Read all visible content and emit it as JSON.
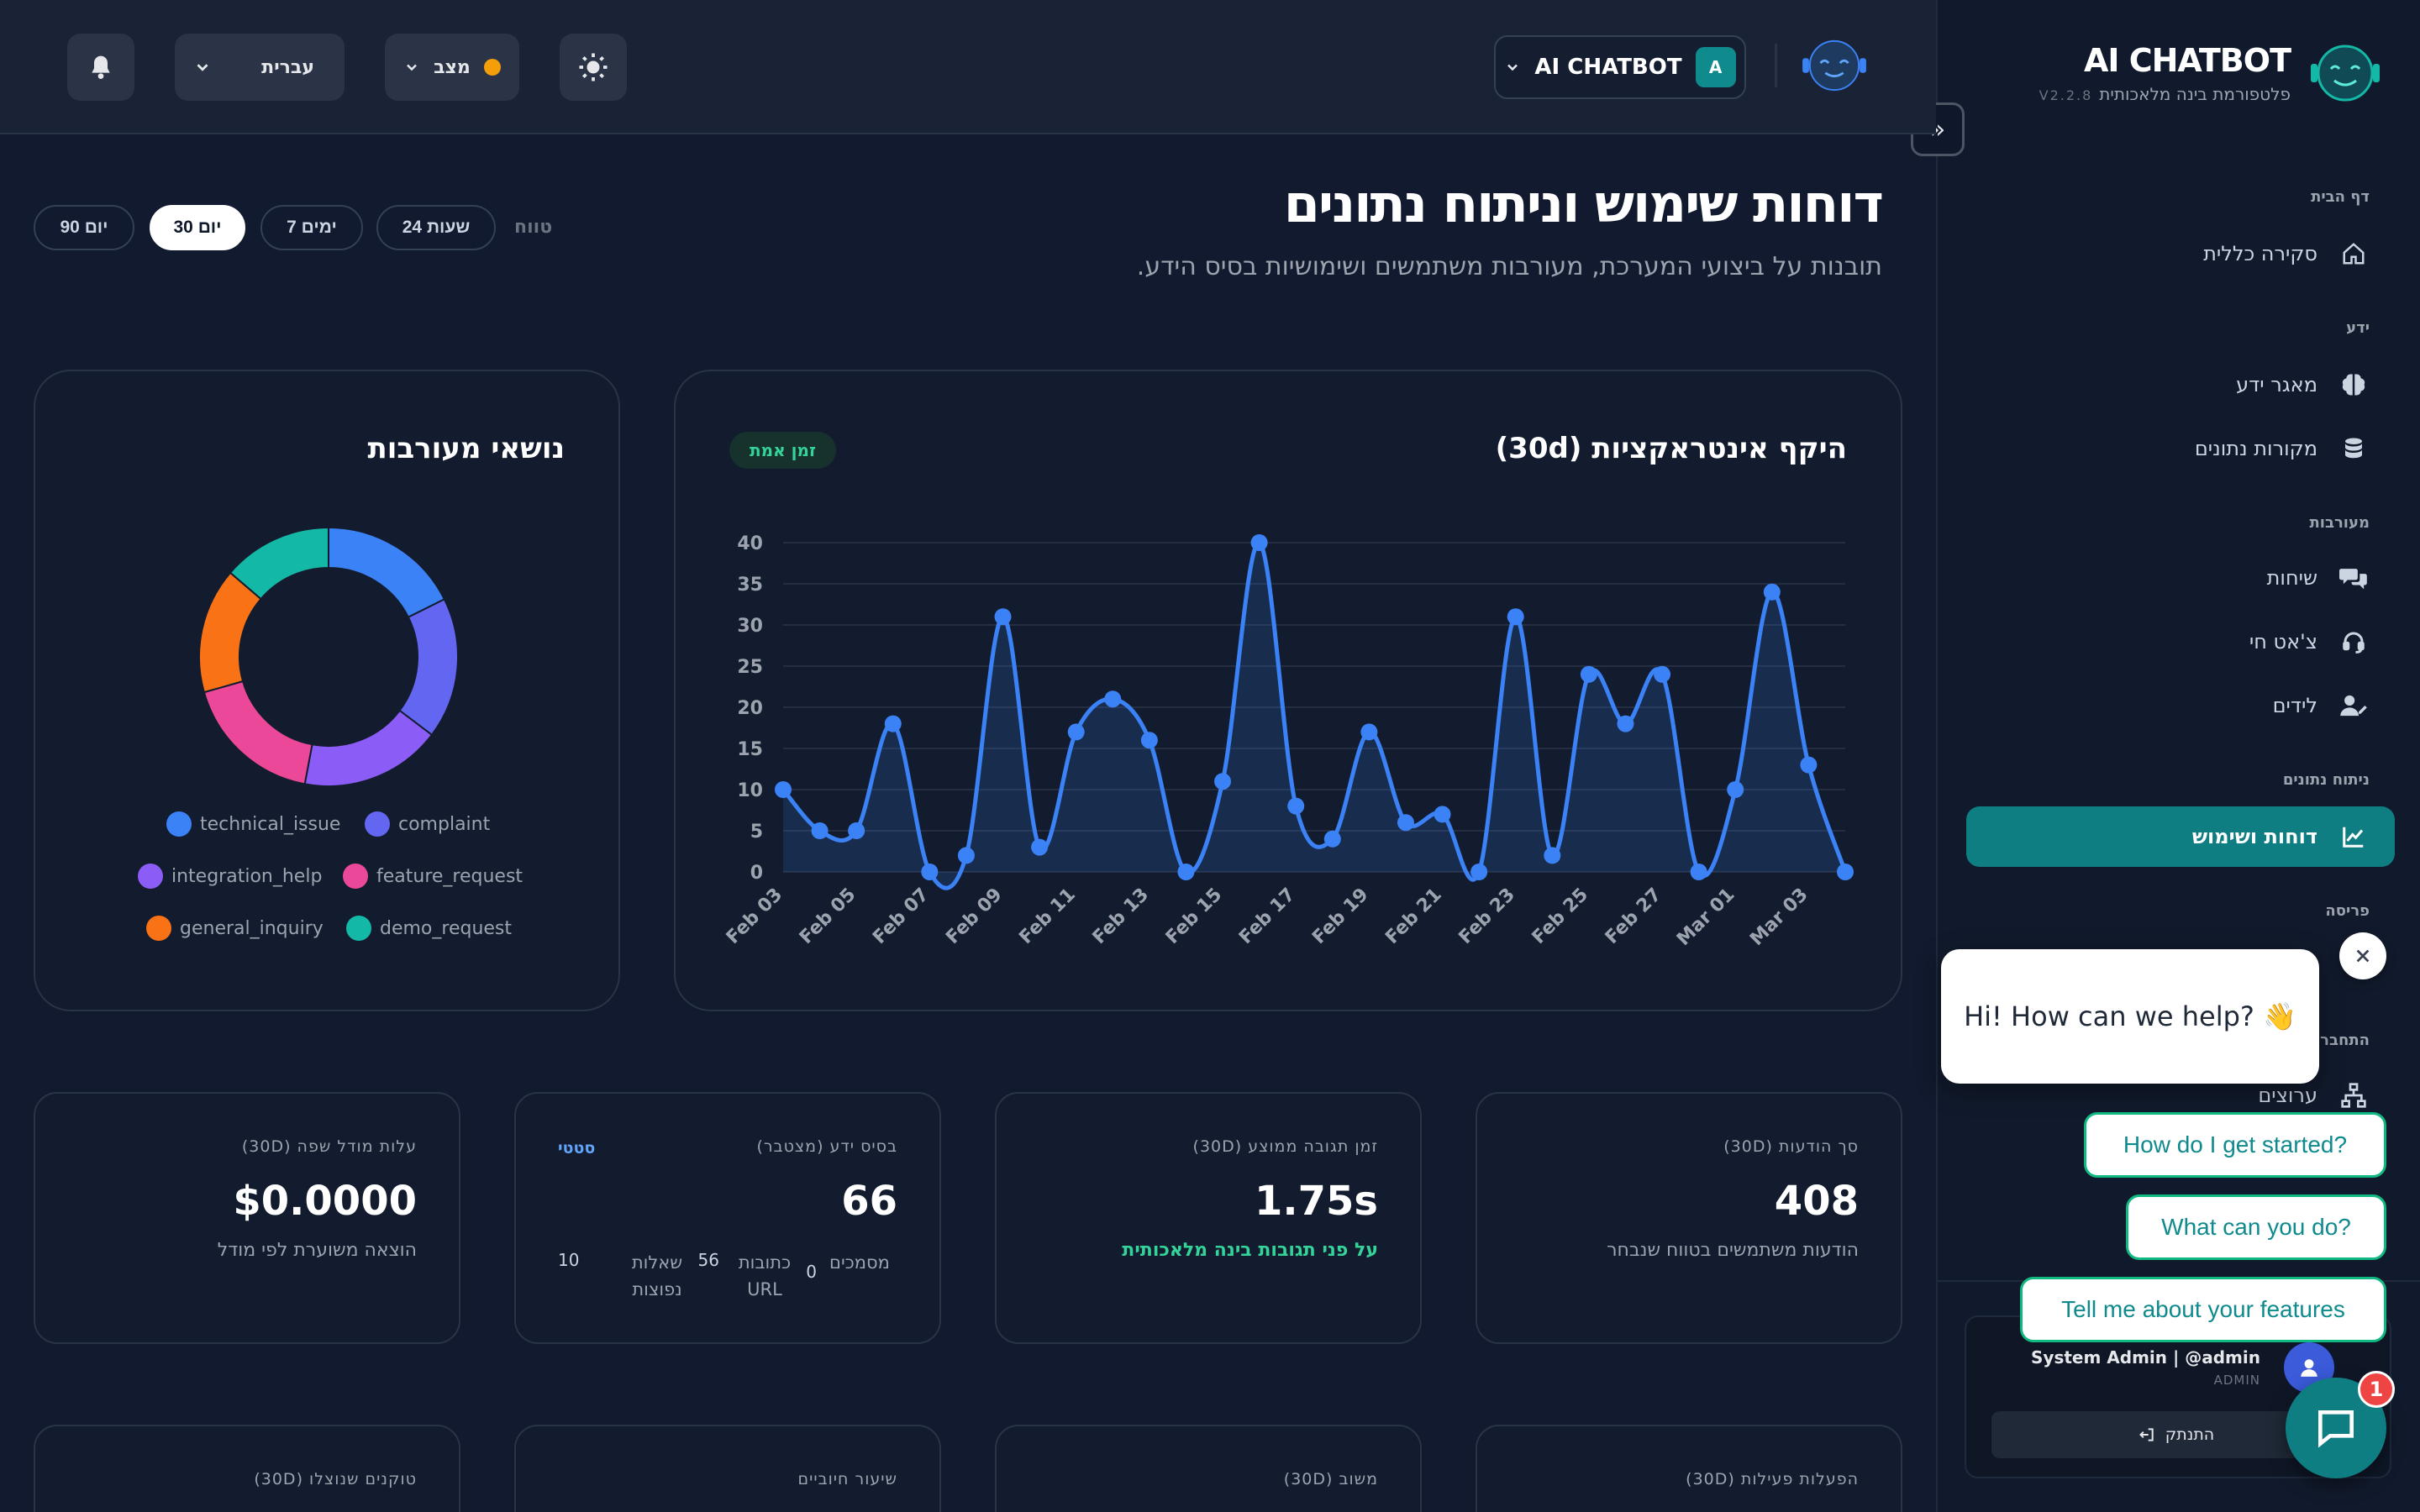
{
  "brand": {
    "title": "AI CHATBOT",
    "subtitle": "פלטפורמת בינה מלאכותית",
    "version": "V2.2.8",
    "icon": "robot-face-icon"
  },
  "sidebar": {
    "sections": [
      {
        "label": "דף הבית",
        "items": [
          {
            "label": "סקירה כללית",
            "icon": "home-icon"
          }
        ]
      },
      {
        "label": "ידע",
        "items": [
          {
            "label": "מאגר ידע",
            "icon": "brain-icon"
          },
          {
            "label": "מקורות נתונים",
            "icon": "database-icon"
          }
        ]
      },
      {
        "label": "מעורבות",
        "items": [
          {
            "label": "שיחות",
            "icon": "chat-bubbles-icon"
          },
          {
            "label": "צ'אט חי",
            "icon": "headset-icon"
          },
          {
            "label": "לידים",
            "icon": "user-pen-icon"
          }
        ]
      },
      {
        "label": "ניתוח נתונים",
        "items": [
          {
            "label": "דוחות ושימוש",
            "icon": "chart-line-icon",
            "active": true
          }
        ]
      },
      {
        "label": "פריסה",
        "items": []
      },
      {
        "label": "התחברו",
        "items": [
          {
            "label": "ערוצים",
            "icon": "network-icon"
          }
        ]
      }
    ],
    "user": {
      "name": "System Admin | @admin",
      "role": "ADMIN",
      "logout": "התנתק"
    }
  },
  "header": {
    "language": "עברית",
    "status": "מצב",
    "status_color": "#f59e0b",
    "chatbot_name": "AI CHATBOT",
    "chatbot_badge": "A"
  },
  "page": {
    "title": "דוחות שימוש וניתוח נתונים",
    "subtitle": "תובנות על ביצועי המערכת, מעורבות משתמשים ושימושיות בסיס הידע."
  },
  "range": {
    "label": "טווח",
    "options": [
      "24 שעות",
      "7 ימים",
      "30 יום",
      "90 יום"
    ],
    "selected": "30 יום"
  },
  "volume_card": {
    "title": "היקף אינטראקציות (30d)",
    "badge": "זמן אמת"
  },
  "topics_card": {
    "title": "נושאי מעורבות"
  },
  "chart_data": [
    {
      "type": "line",
      "title": "היקף אינטראקציות (30d)",
      "x": [
        "Feb 03",
        "Feb 04",
        "Feb 05",
        "Feb 06",
        "Feb 07",
        "Feb 08",
        "Feb 09",
        "Feb 10",
        "Feb 11",
        "Feb 12",
        "Feb 13",
        "Feb 14",
        "Feb 15",
        "Feb 16",
        "Feb 17",
        "Feb 18",
        "Feb 19",
        "Feb 20",
        "Feb 21",
        "Feb 22",
        "Feb 23",
        "Feb 24",
        "Feb 25",
        "Feb 26",
        "Feb 27",
        "Feb 28",
        "Mar 01",
        "Mar 02",
        "Mar 03",
        "Mar 04"
      ],
      "xticks": [
        "Feb 03",
        "Feb 05",
        "Feb 07",
        "Feb 09",
        "Feb 11",
        "Feb 13",
        "Feb 15",
        "Feb 17",
        "Feb 19",
        "Feb 21",
        "Feb 23",
        "Feb 25",
        "Feb 27",
        "Mar 01",
        "Mar 03"
      ],
      "values": [
        10,
        5,
        5,
        18,
        0,
        2,
        31,
        3,
        17,
        21,
        16,
        0,
        11,
        40,
        8,
        4,
        17,
        6,
        7,
        0,
        31,
        2,
        24,
        18,
        24,
        0,
        10,
        34,
        13,
        0
      ],
      "ylim": [
        0,
        40
      ],
      "yticks": [
        0,
        5,
        10,
        15,
        20,
        25,
        30,
        35,
        40
      ],
      "grid": true,
      "color": "#3b82f6"
    },
    {
      "type": "pie",
      "title": "נושאי מעורבות",
      "donut": true,
      "labels": [
        "technical_issue",
        "complaint",
        "integration_help",
        "feature_request",
        "general_inquiry",
        "demo_request"
      ],
      "values": [
        18,
        18,
        18,
        18,
        16,
        14
      ],
      "colors": [
        "#3b82f6",
        "#6366f1",
        "#8b5cf6",
        "#ec4899",
        "#f97316",
        "#14b8a6"
      ],
      "legend": "bottom"
    }
  ],
  "stats": {
    "messages": {
      "label": "סך הודעות (30D)",
      "value": "408",
      "note": "הודעות משתמשים בטווח שנבחר"
    },
    "response": {
      "label": "זמן תגובה ממוצע (30D)",
      "value": "1.75s",
      "note": "על פני תגובות בינה מלאכותית"
    },
    "kb": {
      "label": "בסיס ידע (מצטבר)",
      "value": "66",
      "tag": "סטטי",
      "docs_label": "מסמכים",
      "docs": "0",
      "urls_label": "כתובות URL",
      "urls": "56",
      "faq_label": "שאלות נפוצות",
      "faq": "10"
    },
    "cost": {
      "label": "עלות מודל שפה (30D)",
      "value": "$0.0000",
      "note": "הוצאה משוערת לפי מודל"
    },
    "actions": {
      "label": "הפעלות פעילות (30D)"
    },
    "feedback": {
      "label": "משוב (30D)"
    },
    "billing": {
      "label": "שיעור חיוביים"
    },
    "tokens": {
      "label": "טוקנים שנוצלו (30D)"
    }
  },
  "chat_widget": {
    "greeting": "Hi! How can we help? 👋",
    "suggestions": [
      "How do I get started?",
      "What can you do?",
      "Tell me about your features"
    ],
    "unread": "1"
  }
}
